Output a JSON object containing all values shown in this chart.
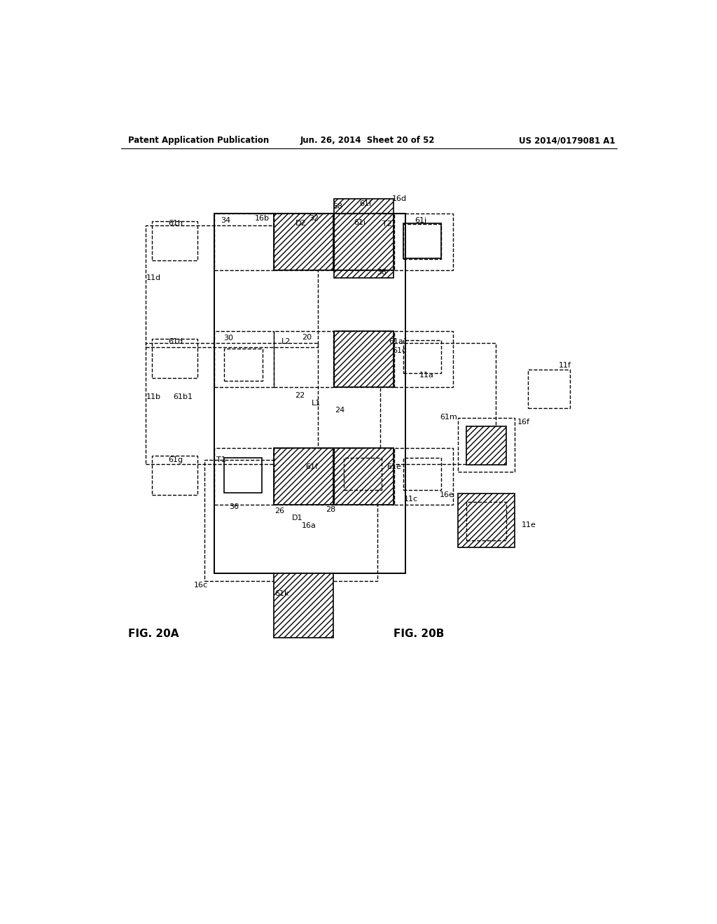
{
  "title_left": "Patent Application Publication",
  "title_mid": "Jun. 26, 2014  Sheet 20 of 52",
  "title_right": "US 2014/0179081 A1",
  "fig_label_A": "FIG. 20A",
  "fig_label_B": "FIG. 20B"
}
